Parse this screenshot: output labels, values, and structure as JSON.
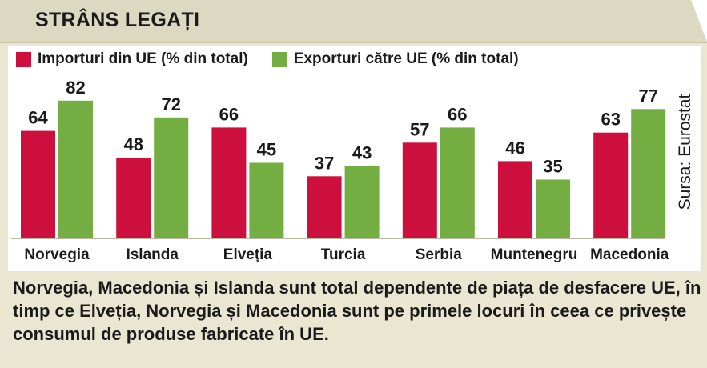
{
  "title": "STRÂNS LEGAȚI",
  "legend": {
    "imports": "Importuri din UE (% din total)",
    "exports": "Exporturi către UE (% din total)"
  },
  "source": "Sursa: Eurostat",
  "caption": "Norvegia, Macedonia și Islanda sunt total dependente de piața de desfacere UE, în timp ce Elveția, Norvegia și Macedonia sunt pe primele locuri în ceea ce privește consumul de produse fabricate în UE.",
  "colors": {
    "imports": "#cc0f3c",
    "exports": "#74ad42"
  },
  "chart_data": {
    "type": "bar",
    "title": "STRÂNS LEGAȚI",
    "categories": [
      "Norvegia",
      "Islanda",
      "Elveția",
      "Turcia",
      "Serbia",
      "Muntenegru",
      "Macedonia"
    ],
    "series": [
      {
        "name": "Importuri din UE (% din total)",
        "values": [
          64,
          48,
          66,
          37,
          57,
          46,
          63
        ]
      },
      {
        "name": "Exporturi către UE (% din total)",
        "values": [
          82,
          72,
          45,
          43,
          66,
          35,
          77
        ]
      }
    ],
    "ylim": [
      0,
      100
    ],
    "grid": false,
    "legend": "top-left"
  }
}
